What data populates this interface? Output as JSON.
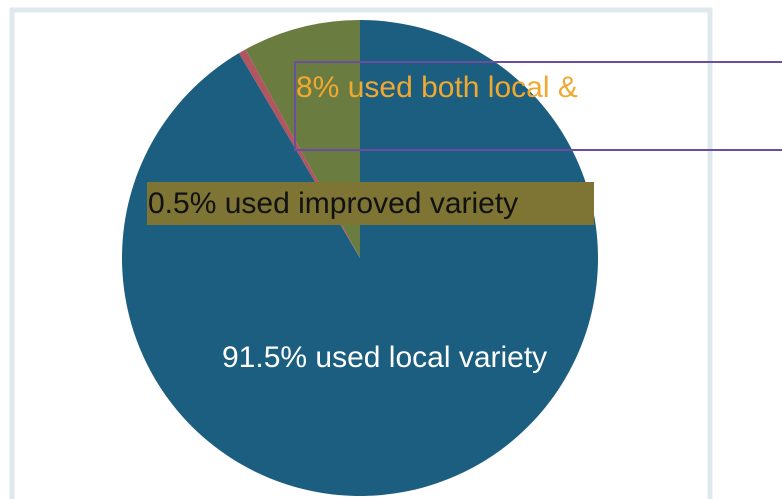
{
  "chart_data": {
    "type": "pie",
    "categories": [
      "8% used both local &",
      "0.5% used improved variety",
      "91.5% used local variety"
    ],
    "values": [
      8,
      0.5,
      91.5
    ],
    "colors": [
      "#6b7c40",
      "#b25560",
      "#1b5e80"
    ]
  }
}
